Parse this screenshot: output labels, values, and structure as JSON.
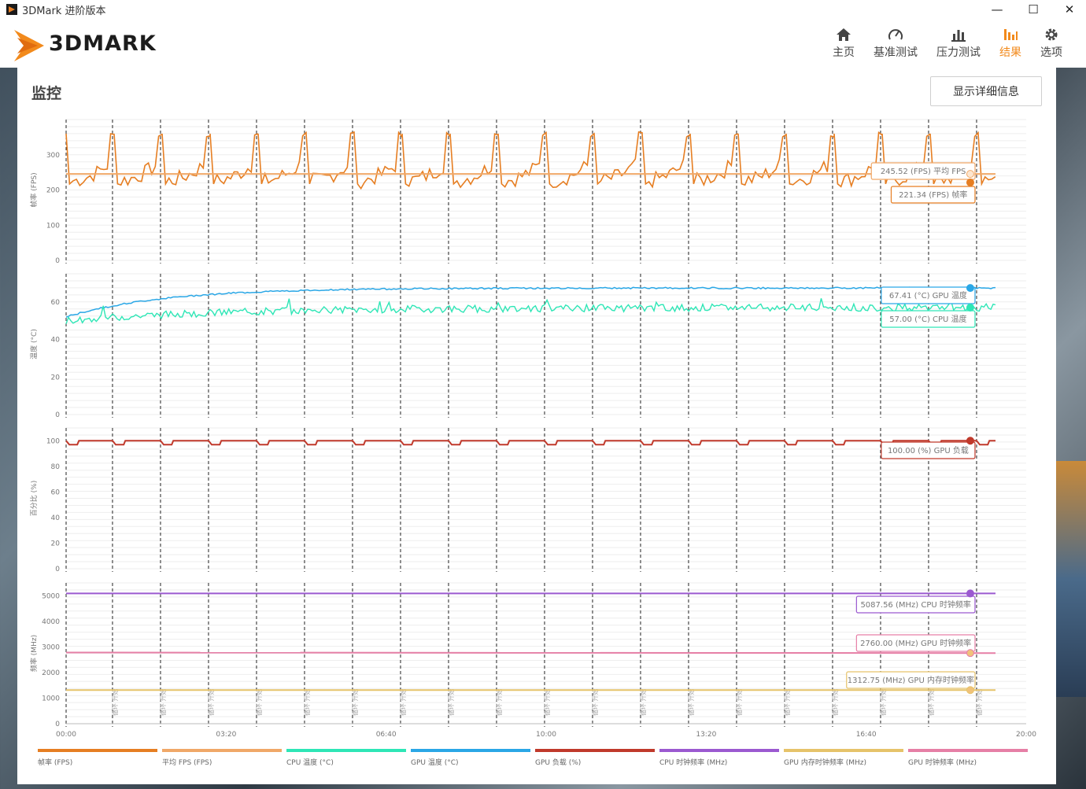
{
  "window": {
    "title": "3DMark 进阶版本",
    "minimize": "—",
    "maximize": "☐",
    "close": "✕"
  },
  "header": {
    "logo": "3DMARK",
    "nav": [
      {
        "label": "主页",
        "icon": "home-icon"
      },
      {
        "label": "基准测试",
        "icon": "gauge-icon"
      },
      {
        "label": "压力测试",
        "icon": "bar-chart-icon"
      },
      {
        "label": "结果",
        "icon": "results-icon",
        "active": true
      },
      {
        "label": "选项",
        "icon": "gear-icon"
      }
    ]
  },
  "panel": {
    "title": "监控",
    "detail_button": "显示详细信息"
  },
  "colors": {
    "fps": "#e67e22",
    "avg_fps": "#f0a868",
    "cpu_temp": "#2ee6b6",
    "gpu_temp": "#2aa7e6",
    "gpu_load": "#c0392b",
    "cpu_clock": "#9b59d0",
    "gpu_mem_clock": "#e6c36a",
    "gpu_clock": "#e67fa6"
  },
  "chart_data": {
    "type": "line",
    "x_ticks": [
      "00:00",
      "03:20",
      "06:40",
      "10:00",
      "13:20",
      "16:40",
      "20:00"
    ],
    "x_range_seconds": [
      0,
      1200
    ],
    "marker_label": "循环 开始",
    "marker_count": 20,
    "panels": [
      {
        "ylabel": "帧率 (FPS)",
        "ylim": [
          0,
          400
        ],
        "yticks": [
          0,
          100,
          200,
          300
        ],
        "series": [
          {
            "name": "帧率 (FPS)",
            "pattern": "sawtooth",
            "min": 200,
            "max": 360,
            "current": 221.34
          },
          {
            "name": "平均 FPS (FPS)",
            "pattern": "flat",
            "value": 245.52
          }
        ],
        "callouts": [
          "245.52 (FPS) 平均 FPS",
          "221.34 (FPS) 帧率"
        ]
      },
      {
        "ylabel": "温度 (°C)",
        "ylim": [
          0,
          75
        ],
        "yticks": [
          0,
          20,
          40,
          60
        ],
        "series": [
          {
            "name": "GPU 温度 (°C)",
            "start": 52,
            "end": 67.41
          },
          {
            "name": "CPU 温度 (°C)",
            "start": 50,
            "end": 57.0,
            "noise": 4
          }
        ],
        "callouts": [
          "67.41 (°C) GPU 温度",
          "57.00 (°C) CPU 温度"
        ]
      },
      {
        "ylabel": "百分比 (%)",
        "ylim": [
          0,
          110
        ],
        "yticks": [
          0,
          20,
          40,
          60,
          80,
          100
        ],
        "series": [
          {
            "name": "GPU 负载 (%)",
            "value": 100.0
          }
        ],
        "callouts": [
          "100.00 (%) GPU 负载"
        ]
      },
      {
        "ylabel": "频率 (MHz)",
        "ylim": [
          0,
          5500
        ],
        "yticks": [
          0,
          1000,
          2000,
          3000,
          4000,
          5000
        ],
        "series": [
          {
            "name": "CPU 时钟频率 (MHz)",
            "value": 5087.56
          },
          {
            "name": "GPU 时钟频率 (MHz)",
            "value": 2760.0
          },
          {
            "name": "GPU 内存时钟频率 (MHz)",
            "value": 1312.75
          }
        ],
        "callouts": [
          "5087.56 (MHz) CPU 时钟频率",
          "2760.00 (MHz) GPU 时钟频率",
          "1312.75 (MHz) GPU 内存时钟频率"
        ]
      }
    ]
  },
  "legend": [
    {
      "label": "帧率 (FPS)",
      "color": "#e67e22"
    },
    {
      "label": "平均 FPS (FPS)",
      "color": "#f0a868"
    },
    {
      "label": "CPU 温度 (°C)",
      "color": "#2ee6b6"
    },
    {
      "label": "GPU 温度 (°C)",
      "color": "#2aa7e6"
    },
    {
      "label": "GPU 负载 (%)",
      "color": "#c0392b"
    },
    {
      "label": "CPU 时钟频率 (MHz)",
      "color": "#9b59d0"
    },
    {
      "label": "GPU 内存时钟频率 (MHz)",
      "color": "#e6c36a"
    },
    {
      "label": "GPU 时钟频率 (MHz)",
      "color": "#e67fa6"
    }
  ]
}
